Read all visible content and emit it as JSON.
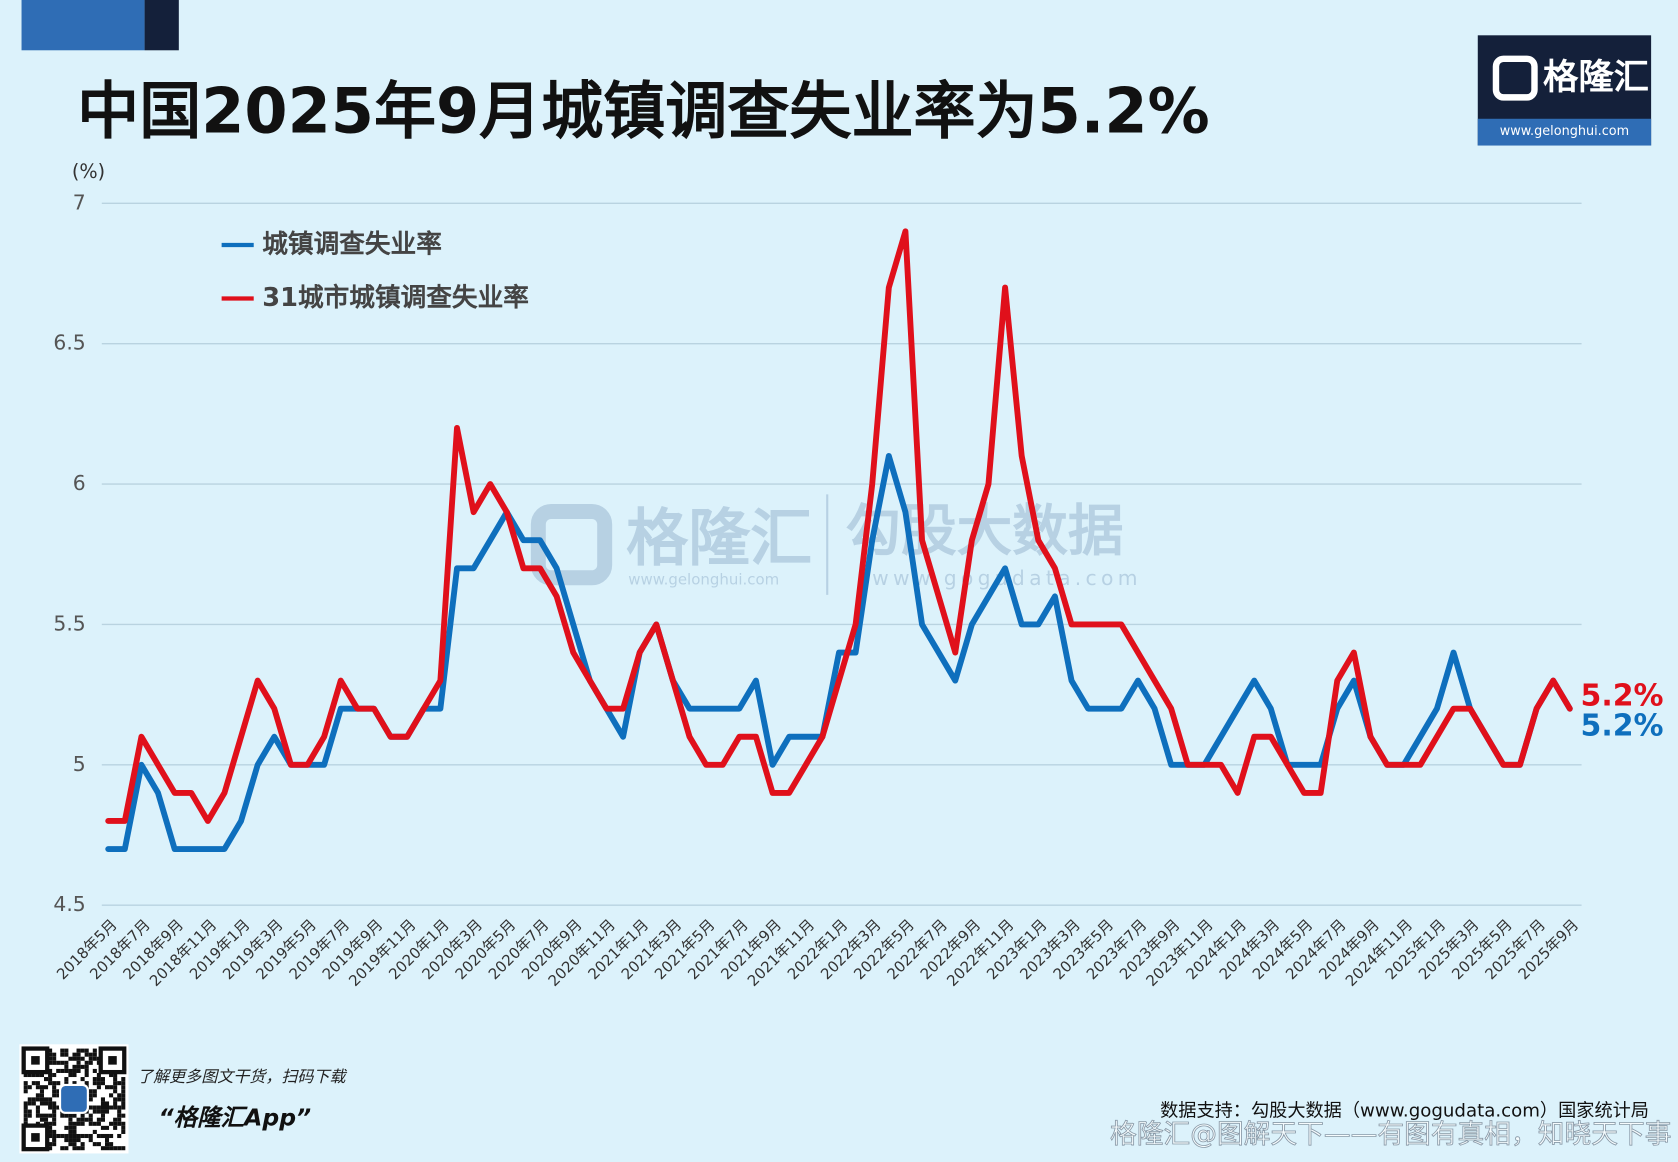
{
  "chart_data": {
    "type": "line",
    "title": "中国2025年9月城镇调查失业率为5.2%",
    "y_unit": "(%)",
    "logo": "格隆汇",
    "logo_url": "www.gelonghui.com",
    "watermark_brand": "格隆汇",
    "watermark_brand_url": "www.gelonghui.com",
    "watermark_data": "勾股大数据",
    "watermark_data_url": "www.gogudata.com",
    "qr_caption": "了解更多图文干货，扫码下载",
    "app_name": "“格隆汇App”",
    "source": "数据支持：勾股大数据（www.gogudata.com）国家统计局",
    "footer_watermark": "格隆汇@图解天下——有图有真相，知晓天下事",
    "categories": [
      "2018年5月",
      null,
      "2018年7月",
      null,
      "2018年9月",
      null,
      "2018年11月",
      null,
      "2019年1月",
      null,
      "2019年3月",
      null,
      "2019年5月",
      null,
      "2019年7月",
      null,
      "2019年9月",
      null,
      "2019年11月",
      null,
      "2020年1月",
      null,
      "2020年3月",
      null,
      "2020年5月",
      null,
      "2020年7月",
      null,
      "2020年9月",
      null,
      "2020年11月",
      null,
      "2021年1月",
      null,
      "2021年3月",
      null,
      "2021年5月",
      null,
      "2021年7月",
      null,
      "2021年9月",
      null,
      "2021年11月",
      null,
      "2022年1月",
      null,
      "2022年3月",
      null,
      "2022年5月",
      null,
      "2022年7月",
      null,
      "2022年9月",
      null,
      "2022年11月",
      null,
      "2023年1月",
      null,
      "2023年3月",
      null,
      "2023年5月",
      null,
      "2023年7月",
      null,
      "2023年9月",
      null,
      "2023年11月",
      null,
      "2024年1月",
      null,
      "2024年3月",
      null,
      "2024年5月",
      null,
      "2024年7月",
      null,
      "2024年9月",
      null,
      "2024年11月",
      null,
      "2025年1月",
      null,
      "2025年3月",
      null,
      "2025年5月",
      null,
      "2025年7月",
      null,
      "2025年9月"
    ],
    "series": [
      {
        "name": "城镇调查失业率",
        "color": "#0e6fbd",
        "values": [
          4.7,
          4.7,
          5.0,
          4.9,
          4.7,
          4.7,
          4.7,
          4.7,
          4.8,
          5.0,
          5.1,
          5.0,
          5.0,
          5.0,
          5.2,
          5.2,
          5.2,
          5.1,
          5.1,
          5.2,
          5.2,
          5.7,
          5.7,
          5.8,
          5.9,
          5.8,
          5.8,
          5.7,
          5.5,
          5.3,
          5.2,
          5.1,
          5.4,
          5.5,
          5.3,
          5.2,
          5.2,
          5.2,
          5.2,
          5.3,
          5.0,
          5.1,
          5.1,
          5.1,
          5.4,
          5.4,
          5.8,
          6.1,
          5.9,
          5.5,
          5.4,
          5.3,
          5.5,
          5.6,
          5.7,
          5.5,
          5.5,
          5.6,
          5.3,
          5.2,
          5.2,
          5.2,
          5.3,
          5.2,
          5.0,
          5.0,
          5.0,
          5.1,
          5.2,
          5.3,
          5.2,
          5.0,
          5.0,
          5.0,
          5.2,
          5.3,
          5.1,
          5.0,
          5.0,
          5.1,
          5.2,
          5.4,
          5.2,
          5.1,
          5.0,
          5.0,
          5.2,
          5.3,
          5.2
        ],
        "value_labels": [
          null,
          null,
          null,
          null,
          null,
          null,
          null,
          null,
          null,
          null,
          null,
          null,
          null,
          null,
          null,
          null,
          null,
          null,
          null,
          null,
          null,
          null,
          null,
          null,
          null,
          null,
          null,
          null,
          null,
          null,
          null,
          null,
          null,
          null,
          null,
          null,
          null,
          null,
          null,
          null,
          null,
          null,
          null,
          null,
          null,
          null,
          null,
          null,
          null,
          null,
          null,
          null,
          null,
          null,
          null,
          null,
          null,
          null,
          null,
          null,
          null,
          null,
          null,
          null,
          null,
          null,
          null,
          null,
          null,
          null,
          null,
          null,
          null,
          null,
          null,
          null,
          null,
          null,
          null,
          null,
          null,
          null,
          null,
          null,
          null,
          null,
          null,
          null,
          "5.2%"
        ]
      },
      {
        "name": "31城市城镇调查失业率",
        "color": "#e0101b",
        "values": [
          4.8,
          4.8,
          5.1,
          5.0,
          4.9,
          4.9,
          4.8,
          4.9,
          5.1,
          5.3,
          5.2,
          5.0,
          5.0,
          5.1,
          5.3,
          5.2,
          5.2,
          5.1,
          5.1,
          5.2,
          5.3,
          6.2,
          5.9,
          6.0,
          5.9,
          5.7,
          5.7,
          5.6,
          5.4,
          5.3,
          5.2,
          5.2,
          5.4,
          5.5,
          5.3,
          5.1,
          5.0,
          5.0,
          5.1,
          5.1,
          4.9,
          4.9,
          5.0,
          5.1,
          5.3,
          5.5,
          6.0,
          6.7,
          6.9,
          5.8,
          5.6,
          5.4,
          5.8,
          6.0,
          6.7,
          6.1,
          5.8,
          5.7,
          5.5,
          5.5,
          5.5,
          5.5,
          5.4,
          5.3,
          5.2,
          5.0,
          5.0,
          5.0,
          4.9,
          5.1,
          5.1,
          5.0,
          4.9,
          4.9,
          5.3,
          5.4,
          5.1,
          5.0,
          5.0,
          5.0,
          5.1,
          5.2,
          5.2,
          5.1,
          5.0,
          5.0,
          5.2,
          5.3,
          5.2
        ],
        "value_labels": [
          null,
          null,
          null,
          null,
          null,
          null,
          null,
          null,
          null,
          null,
          null,
          null,
          null,
          null,
          null,
          null,
          null,
          null,
          null,
          null,
          null,
          null,
          null,
          null,
          null,
          null,
          null,
          null,
          null,
          null,
          null,
          null,
          null,
          null,
          null,
          null,
          null,
          null,
          null,
          null,
          null,
          null,
          null,
          null,
          null,
          null,
          null,
          null,
          null,
          null,
          null,
          null,
          null,
          null,
          null,
          null,
          null,
          null,
          null,
          null,
          null,
          null,
          null,
          null,
          null,
          null,
          null,
          null,
          null,
          null,
          null,
          null,
          null,
          null,
          null,
          null,
          null,
          null,
          null,
          null,
          null,
          null,
          null,
          null,
          null,
          null,
          null,
          null,
          "5.2%"
        ]
      }
    ],
    "ylim": [
      4.5,
      7
    ],
    "yticks": [
      4.5,
      5,
      5.5,
      6,
      6.5,
      7
    ],
    "grid": true,
    "legend": "upper left"
  }
}
